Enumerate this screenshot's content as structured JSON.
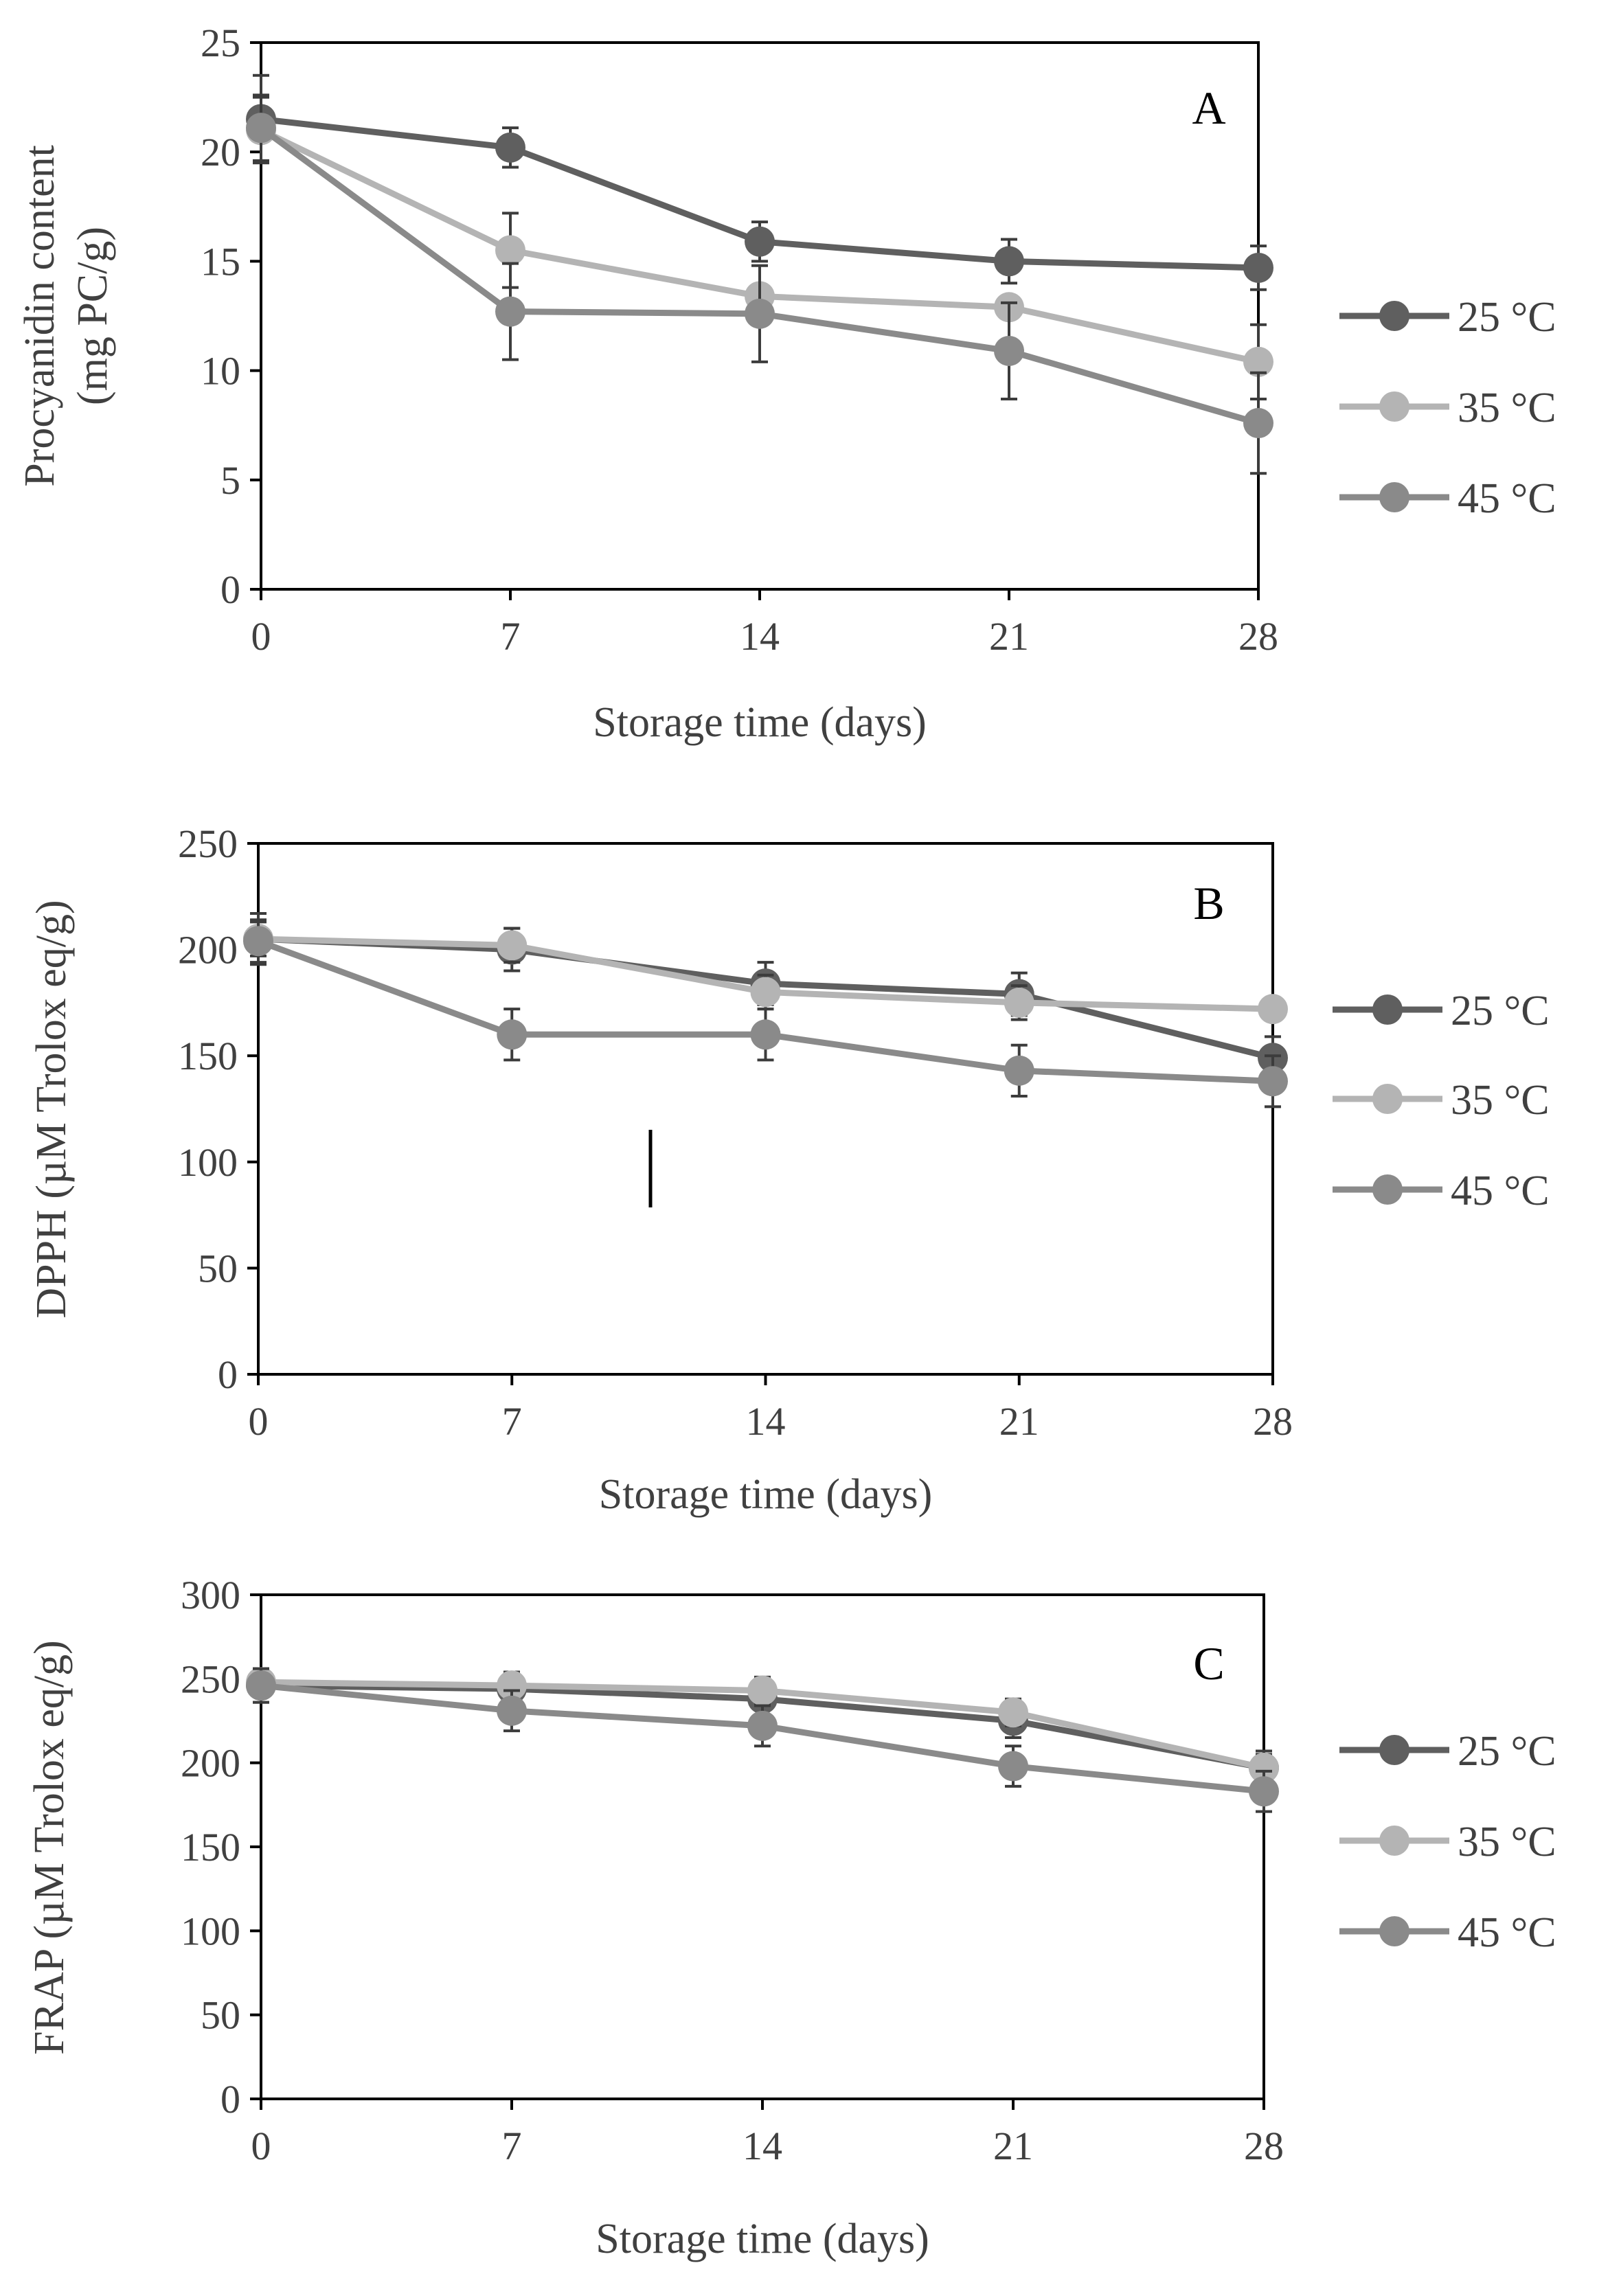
{
  "chart_data": [
    {
      "type": "line",
      "panel_label": "A",
      "title": "",
      "xlabel": "Storage time (days)",
      "ylabel_lines": [
        "Procyanidin content",
        "(mg PC/g)"
      ],
      "x": [
        0,
        7,
        14,
        21,
        28
      ],
      "x_ticks": [
        "0",
        "7",
        "14",
        "21",
        "28"
      ],
      "ylim": [
        0,
        25
      ],
      "y_ticks": [
        "0",
        "5",
        "10",
        "15",
        "20",
        "25"
      ],
      "y_tick_values": [
        0,
        5,
        10,
        15,
        20,
        25
      ],
      "legend_position": "right",
      "series": [
        {
          "name": "25 °C",
          "color": "#5f5f5f",
          "values": [
            21.5,
            20.2,
            15.9,
            15.0,
            14.7
          ],
          "errors": [
            2.0,
            0.9,
            0.9,
            1.0,
            1.0
          ]
        },
        {
          "name": "35 °C",
          "color": "#b4b4b4",
          "values": [
            21.0,
            15.5,
            13.4,
            12.9,
            10.4
          ],
          "errors": [
            1.5,
            1.7,
            0.0,
            0.0,
            1.7
          ]
        },
        {
          "name": "45 °C",
          "color": "#8a8a8a",
          "values": [
            21.1,
            12.7,
            12.6,
            10.9,
            7.6
          ],
          "errors": [
            1.5,
            2.2,
            2.2,
            2.2,
            2.3
          ]
        }
      ]
    },
    {
      "type": "line",
      "panel_label": "B",
      "title": "",
      "xlabel": "Storage time (days)",
      "ylabel_lines": [
        "DPPH (µM Trolox eq/g)"
      ],
      "x": [
        0,
        7,
        14,
        21,
        28
      ],
      "x_ticks": [
        "0",
        "7",
        "14",
        "21",
        "28"
      ],
      "ylim": [
        0,
        250
      ],
      "y_ticks": [
        "0",
        "50",
        "100",
        "150",
        "200",
        "250"
      ],
      "y_tick_values": [
        0,
        50,
        100,
        150,
        200,
        250
      ],
      "legend_position": "right",
      "series": [
        {
          "name": "25 °C",
          "color": "#5f5f5f",
          "values": [
            205,
            200,
            184,
            179,
            149
          ],
          "errors": [
            12,
            10,
            10,
            10,
            10
          ]
        },
        {
          "name": "35 °C",
          "color": "#b4b4b4",
          "values": [
            205,
            202,
            180,
            175,
            172
          ],
          "errors": [
            8,
            8,
            8,
            8,
            0
          ]
        },
        {
          "name": "45 °C",
          "color": "#8a8a8a",
          "values": [
            204,
            160,
            160,
            143,
            138
          ],
          "errors": [
            10,
            12,
            12,
            12,
            12
          ]
        }
      ]
    },
    {
      "type": "line",
      "panel_label": "C",
      "title": "",
      "xlabel": "Storage time (days)",
      "ylabel_lines": [
        "FRAP (µM Trolox eq/g)"
      ],
      "x": [
        0,
        7,
        14,
        21,
        28
      ],
      "x_ticks": [
        "0",
        "7",
        "14",
        "21",
        "28"
      ],
      "ylim": [
        0,
        300
      ],
      "y_ticks": [
        "0",
        "50",
        "100",
        "150",
        "200",
        "250",
        "300"
      ],
      "y_tick_values": [
        0,
        50,
        100,
        150,
        200,
        250,
        300
      ],
      "legend_position": "right",
      "series": [
        {
          "name": "25 °C",
          "color": "#5f5f5f",
          "values": [
            246,
            244,
            238,
            225,
            197
          ],
          "errors": [
            10,
            10,
            10,
            10,
            10
          ]
        },
        {
          "name": "35 °C",
          "color": "#b4b4b4",
          "values": [
            248,
            246,
            243,
            230,
            197
          ],
          "errors": [
            8,
            8,
            8,
            8,
            8
          ]
        },
        {
          "name": "45 °C",
          "color": "#8a8a8a",
          "values": [
            246,
            231,
            222,
            198,
            183
          ],
          "errors": [
            10,
            12,
            12,
            12,
            12
          ]
        }
      ]
    }
  ]
}
